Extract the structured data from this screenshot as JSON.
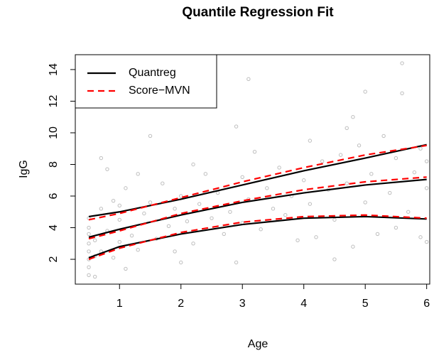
{
  "chart_data": {
    "type": "scatter-lines",
    "title": "Quantile Regression Fit",
    "x_label": "Age",
    "y_label": "IgG",
    "xlim": [
      0.28,
      6.05
    ],
    "ylim": [
      0.43,
      14.94
    ],
    "xticks": [
      1,
      2,
      3,
      4,
      5,
      6
    ],
    "yticks": [
      2,
      4,
      6,
      8,
      10,
      12,
      14
    ],
    "legend": "top-left",
    "points": {
      "color": "#bebebe",
      "x": [
        0.5,
        0.5,
        0.5,
        0.5,
        0.5,
        0.5,
        0.5,
        0.5,
        0.6,
        0.6,
        0.6,
        0.7,
        0.7,
        0.7,
        0.8,
        0.8,
        0.9,
        0.9,
        1.0,
        1.0,
        1.0,
        1.1,
        1.1,
        1.2,
        1.3,
        1.3,
        1.4,
        1.5,
        1.5,
        1.6,
        1.7,
        1.8,
        1.9,
        1.9,
        2.0,
        2.0,
        2.1,
        2.2,
        2.2,
        2.3,
        2.4,
        2.5,
        2.6,
        2.7,
        2.8,
        2.9,
        2.9,
        3.0,
        3.0,
        3.1,
        3.1,
        3.2,
        3.3,
        3.4,
        3.5,
        3.6,
        3.7,
        3.8,
        3.9,
        4.0,
        4.1,
        4.1,
        4.2,
        4.3,
        4.4,
        4.5,
        4.5,
        4.6,
        4.7,
        4.7,
        4.8,
        4.8,
        4.9,
        5.0,
        5.0,
        5.1,
        5.2,
        5.3,
        5.4,
        5.5,
        5.5,
        5.6,
        5.6,
        5.7,
        5.8,
        5.9,
        5.9,
        6.0,
        6.0,
        6.0
      ],
      "y": [
        1.0,
        1.5,
        2.0,
        2.5,
        3.0,
        3.6,
        4.0,
        4.6,
        0.9,
        2.2,
        3.2,
        8.4,
        5.2,
        2.5,
        7.7,
        3.8,
        5.7,
        2.1,
        4.5,
        3.1,
        5.4,
        1.4,
        6.5,
        3.5,
        7.4,
        2.6,
        4.9,
        9.8,
        5.6,
        3.3,
        6.8,
        4.1,
        5.2,
        2.5,
        6.0,
        1.8,
        4.4,
        8.0,
        3.0,
        5.5,
        7.4,
        4.6,
        6.2,
        3.6,
        5.0,
        10.4,
        1.8,
        7.2,
        4.3,
        13.4,
        5.8,
        8.8,
        3.9,
        6.5,
        5.2,
        7.8,
        4.8,
        6.0,
        3.2,
        7.0,
        9.5,
        5.5,
        3.4,
        8.2,
        6.4,
        2.0,
        4.5,
        8.6,
        10.3,
        6.8,
        11.0,
        2.8,
        9.2,
        5.6,
        12.6,
        7.4,
        3.6,
        9.8,
        6.2,
        8.4,
        4.0,
        14.4,
        12.5,
        5.0,
        7.5,
        9.0,
        3.4,
        6.5,
        3.1,
        8.2
      ]
    },
    "x": [
      0.5,
      1,
      2,
      3,
      4,
      5,
      6
    ],
    "series": [
      {
        "name": "Quantreg",
        "color": "#000000",
        "dashed": false,
        "curves": [
          [
            4.7,
            5.0,
            5.8,
            6.7,
            7.6,
            8.4,
            9.25
          ],
          [
            3.4,
            3.9,
            4.8,
            5.6,
            6.2,
            6.7,
            7.05
          ],
          [
            2.1,
            2.8,
            3.6,
            4.2,
            4.6,
            4.7,
            4.55
          ]
        ]
      },
      {
        "name": "Score−MVN",
        "color": "#ff0000",
        "dashed": true,
        "curves": [
          [
            4.5,
            4.9,
            5.9,
            6.9,
            7.8,
            8.6,
            9.2
          ],
          [
            3.3,
            3.8,
            4.9,
            5.7,
            6.4,
            6.9,
            7.2
          ],
          [
            2.0,
            2.7,
            3.7,
            4.35,
            4.7,
            4.8,
            4.6
          ]
        ]
      }
    ]
  }
}
